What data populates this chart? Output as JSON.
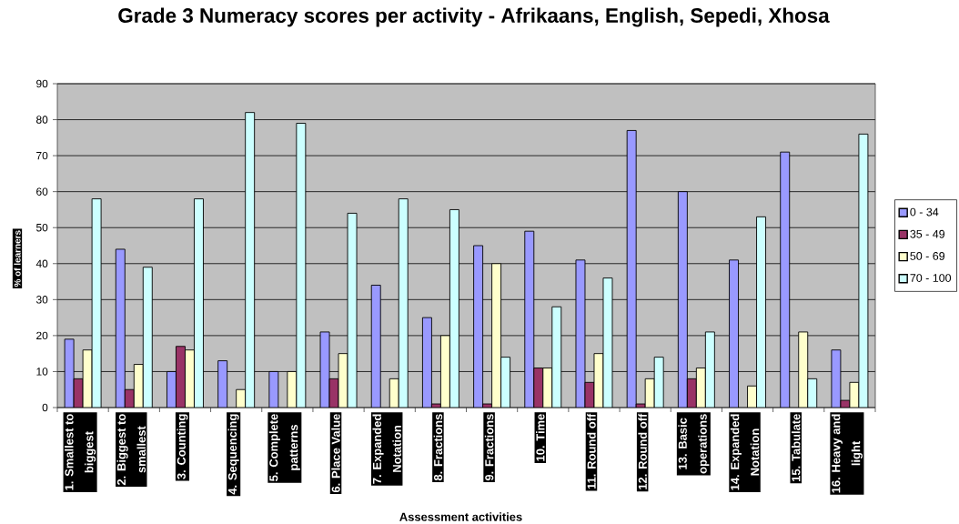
{
  "chart_data": {
    "type": "bar",
    "title": "Grade 3 Numeracy scores per activity - Afrikaans, English, Sepedi, Xhosa",
    "xlabel": "Assessment activities",
    "ylabel": "% of learners",
    "categories": [
      "1. Smallest to biggest",
      "2. Biggest to smallest",
      "3. Counting",
      "4. Sequencing",
      "5. Complete patterns",
      "6. Place Value",
      "7. Expanded Notation",
      "8. Fractions",
      "9. Fractions",
      "10. Time",
      "11. Round off",
      "12. Round off",
      "13. Basic operations",
      "14. Expanded Notation",
      "15. Tabulate",
      "16. Heavy and light"
    ],
    "series": [
      {
        "name": "0 - 34",
        "color": "#9999ff",
        "values": [
          19,
          44,
          10,
          13,
          10,
          21,
          34,
          25,
          45,
          49,
          41,
          77,
          60,
          41,
          71,
          16
        ]
      },
      {
        "name": "35 - 49",
        "color": "#993366",
        "values": [
          8,
          5,
          17,
          0,
          0,
          8,
          0,
          1,
          1,
          11,
          7,
          1,
          8,
          0,
          0,
          2
        ]
      },
      {
        "name": "50 - 69",
        "color": "#ffffcc",
        "values": [
          16,
          12,
          16,
          5,
          10,
          15,
          8,
          20,
          40,
          11,
          15,
          8,
          11,
          6,
          21,
          7
        ]
      },
      {
        "name": "70 - 100",
        "color": "#ccffff",
        "values": [
          58,
          39,
          58,
          82,
          79,
          54,
          58,
          55,
          14,
          28,
          36,
          14,
          21,
          53,
          8,
          76
        ]
      }
    ],
    "ylim": [
      0,
      90
    ],
    "yticks": [
      0,
      10,
      20,
      30,
      40,
      50,
      60,
      70,
      80,
      90
    ],
    "grid": "y",
    "legend": "right"
  }
}
